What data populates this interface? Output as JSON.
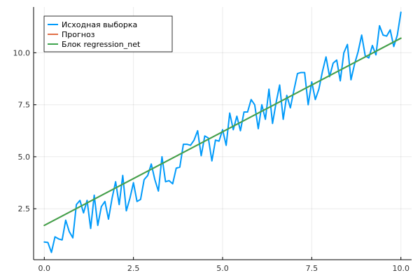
{
  "chart_data": {
    "type": "line",
    "title": "",
    "xlabel": "",
    "ylabel": "",
    "xlim": [
      -0.3,
      10.3
    ],
    "ylim": [
      0.05,
      12.2
    ],
    "x_ticks": [
      0.0,
      2.5,
      5.0,
      7.5,
      10.0
    ],
    "x_tick_labels": [
      "0.0",
      "2.5",
      "5.0",
      "7.5",
      "10.0"
    ],
    "y_ticks": [
      2.5,
      5.0,
      7.5,
      10.0
    ],
    "y_tick_labels": [
      "2.5",
      "5.0",
      "7.5",
      "10.0"
    ],
    "grid": true,
    "legend_position": "top-left",
    "series": [
      {
        "name": "Исходная выборка",
        "color": "#009AFA",
        "x": [
          0.0,
          0.1,
          0.2,
          0.3,
          0.4,
          0.5,
          0.6,
          0.7,
          0.8,
          0.9,
          1.0,
          1.1,
          1.2,
          1.3,
          1.4,
          1.5,
          1.6,
          1.7,
          1.8,
          1.9,
          2.0,
          2.1,
          2.2,
          2.3,
          2.4,
          2.5,
          2.6,
          2.7,
          2.8,
          2.9,
          3.0,
          3.1,
          3.2,
          3.3,
          3.4,
          3.5,
          3.6,
          3.7,
          3.8,
          3.9,
          4.0,
          4.1,
          4.2,
          4.3,
          4.4,
          4.5,
          4.6,
          4.7,
          4.8,
          4.9,
          5.0,
          5.1,
          5.2,
          5.3,
          5.4,
          5.5,
          5.6,
          5.7,
          5.8,
          5.9,
          6.0,
          6.1,
          6.2,
          6.3,
          6.4,
          6.5,
          6.6,
          6.7,
          6.8,
          6.9,
          7.0,
          7.1,
          7.2,
          7.3,
          7.4,
          7.5,
          7.6,
          7.7,
          7.8,
          7.9,
          8.0,
          8.1,
          8.2,
          8.3,
          8.4,
          8.5,
          8.6,
          8.7,
          8.8,
          8.9,
          9.0,
          9.1,
          9.2,
          9.3,
          9.4,
          9.5,
          9.6,
          9.7,
          9.8,
          9.9,
          10.0
        ],
        "y": [
          0.9,
          0.88,
          0.4,
          1.15,
          1.05,
          1.0,
          1.95,
          1.4,
          1.1,
          2.7,
          2.9,
          2.3,
          2.9,
          1.55,
          3.15,
          1.7,
          2.6,
          2.85,
          2.0,
          3.0,
          3.8,
          2.7,
          4.1,
          2.4,
          3.0,
          3.75,
          2.85,
          2.95,
          3.9,
          4.1,
          4.65,
          3.9,
          3.35,
          5.0,
          3.8,
          3.85,
          3.7,
          4.45,
          4.5,
          5.6,
          5.6,
          5.55,
          5.8,
          6.25,
          5.05,
          6.0,
          5.9,
          4.8,
          5.8,
          5.75,
          6.3,
          5.55,
          7.1,
          6.3,
          6.95,
          6.25,
          7.15,
          7.15,
          7.75,
          7.5,
          6.35,
          7.5,
          6.8,
          8.25,
          6.6,
          7.6,
          8.45,
          6.8,
          7.95,
          7.35,
          8.2,
          9.0,
          9.05,
          9.05,
          7.5,
          8.6,
          7.75,
          8.25,
          9.1,
          9.8,
          8.85,
          9.5,
          9.65,
          8.65,
          10.0,
          10.4,
          8.7,
          9.45,
          10.05,
          10.85,
          9.85,
          9.75,
          10.35,
          9.9,
          11.3,
          10.85,
          10.8,
          11.1,
          10.3,
          10.85,
          11.95
        ]
      },
      {
        "name": "Прогноз",
        "color": "#E26F46",
        "x": [
          0.0,
          10.0
        ],
        "y": [
          1.7,
          10.7
        ]
      },
      {
        "name": "Блок regression_net",
        "color": "#3EA44E",
        "x": [
          0.0,
          10.0
        ],
        "y": [
          1.7,
          10.7
        ]
      }
    ]
  }
}
